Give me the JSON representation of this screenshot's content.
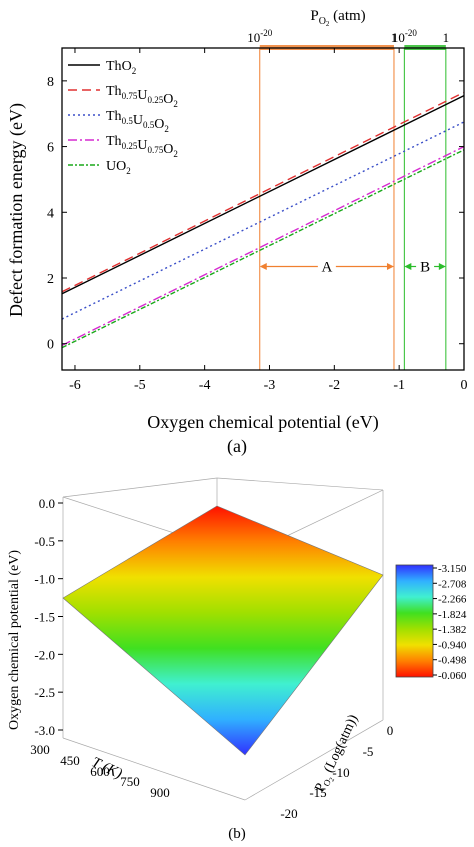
{
  "chart_data": [
    {
      "type": "line",
      "panel_label": "(a)",
      "xlabel": "Oxygen chemical potential (eV)",
      "ylabel": "Defect formation energy (eV)",
      "xlim": [
        -6.2,
        0
      ],
      "ylim": [
        -0.8,
        9
      ],
      "x_ticks": [
        -6,
        -5,
        -4,
        -3,
        -2,
        -1,
        0
      ],
      "y_ticks": [
        0,
        2,
        4,
        6,
        8
      ],
      "top_axis": {
        "label": "P_O2 (atm)",
        "label_main": "P",
        "label_sub": "O",
        "label_subsub": "2",
        "label_unit": " (atm)",
        "marks": [
          {
            "text": "10",
            "exp": "-20",
            "x": -3.15
          },
          {
            "text": "1",
            "x": -1.08
          },
          {
            "text": "10",
            "exp": "-20",
            "x": -0.92
          },
          {
            "text": "1",
            "x": -0.28
          }
        ]
      },
      "legend_position": "top-left",
      "series": [
        {
          "name": "ThO2",
          "label_parts": [
            [
              "Th",
              ""
            ],
            [
              "O",
              "2"
            ]
          ],
          "color": "#000000",
          "dash": "",
          "x": [
            -6.2,
            0
          ],
          "y": [
            1.52,
            7.55
          ]
        },
        {
          "name": "Th0.75U0.25O2",
          "label_parts": [
            [
              "Th",
              "0.75"
            ],
            [
              "U",
              "0.25"
            ],
            [
              "O",
              "2"
            ]
          ],
          "color": "#e03030",
          "dash": "9,5",
          "x": [
            -6.2,
            0
          ],
          "y": [
            1.58,
            7.65
          ]
        },
        {
          "name": "Th0.5U0.5O2",
          "label_parts": [
            [
              "Th",
              "0.5"
            ],
            [
              "U",
              "0.5"
            ],
            [
              "O",
              "2"
            ]
          ],
          "color": "#3a4fc8",
          "dash": "2,3",
          "x": [
            -6.2,
            0
          ],
          "y": [
            0.75,
            6.75
          ]
        },
        {
          "name": "Th0.25U0.75O2",
          "label_parts": [
            [
              "Th",
              "0.25"
            ],
            [
              "U",
              "0.75"
            ],
            [
              "O",
              "2"
            ]
          ],
          "color": "#d62ad0",
          "dash": "9,3,2,3",
          "x": [
            -6.2,
            0
          ],
          "y": [
            -0.05,
            6.0
          ]
        },
        {
          "name": "UO2",
          "label_parts": [
            [
              "U",
              ""
            ],
            [
              "O",
              "2"
            ]
          ],
          "color": "#1aa81a",
          "dash": "5,2,2,2",
          "x": [
            -6.2,
            0
          ],
          "y": [
            -0.12,
            5.9
          ]
        }
      ],
      "regions": [
        {
          "label": "A",
          "x_start": -3.15,
          "x_end": -1.08,
          "color": "#f08030"
        },
        {
          "label": "B",
          "x_start": -0.92,
          "x_end": -0.28,
          "color": "#2bbd2b"
        }
      ]
    },
    {
      "type": "surface",
      "panel_label": "(b)",
      "zlabel": "Oxygen chemical potential (eV)",
      "xlabel": "T (K)",
      "ylabel": "P_O2 (Log(atm))",
      "ylabel_main": "P",
      "ylabel_sub": "O",
      "ylabel_subsub": "2",
      "ylabel_unit": " (Log(atm))",
      "z_ticks": [
        "0.0",
        "-0.5",
        "-1.0",
        "-1.5",
        "-2.0",
        "-2.5",
        "-3.0"
      ],
      "x_ticks": [
        "300",
        "450",
        "600",
        "750",
        "900"
      ],
      "y_ticks": [
        "0",
        "-5",
        "-10",
        "-15",
        "-20"
      ],
      "colorbar_ticks": [
        "-3.150",
        "-2.708",
        "-2.266",
        "-1.824",
        "-1.382",
        "-0.940",
        "-0.498",
        "-0.060"
      ],
      "colorbar_colors": [
        "#3030ff",
        "#30b0ff",
        "#40f0d0",
        "#40e020",
        "#a0e000",
        "#f0e000",
        "#ff8000",
        "#ff1000"
      ],
      "corners": [
        {
          "T": 300,
          "logP": 0,
          "mu": -0.06
        },
        {
          "T": 300,
          "logP": -20,
          "mu": -1.0
        },
        {
          "T": 1000,
          "logP": 0,
          "mu": -1.0
        },
        {
          "T": 1000,
          "logP": -20,
          "mu": -3.15
        }
      ]
    }
  ]
}
